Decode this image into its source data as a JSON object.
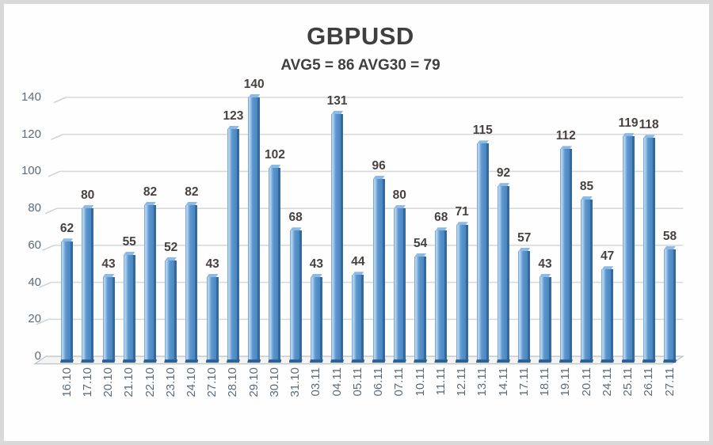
{
  "chart_data": {
    "type": "bar",
    "title": "GBPUSD",
    "subtitle": "AVG5 = 86 AVG30 = 79",
    "categories": [
      "16.10",
      "17.10",
      "20.10",
      "21.10",
      "22.10",
      "23.10",
      "24.10",
      "27.10",
      "28.10",
      "29.10",
      "30.10",
      "31.10",
      "03.11",
      "04.11",
      "05.11",
      "06.11",
      "07.11",
      "10.11",
      "11.11",
      "12.11",
      "13.11",
      "14.11",
      "17.11",
      "18.11",
      "19.11",
      "20.11",
      "24.11",
      "25.11",
      "26.11",
      "27.11"
    ],
    "values": [
      62,
      80,
      43,
      55,
      82,
      52,
      82,
      43,
      123,
      140,
      102,
      68,
      43,
      131,
      44,
      96,
      80,
      54,
      68,
      71,
      115,
      92,
      57,
      43,
      112,
      85,
      47,
      119,
      118,
      58
    ],
    "data_labels": true,
    "xlabel": "",
    "ylabel": "",
    "ylim": [
      0,
      140
    ],
    "yticks": [
      0,
      20,
      40,
      60,
      80,
      100,
      120,
      140
    ],
    "grid": true,
    "legend": false,
    "style_3d": true,
    "colors": {
      "bar_face": "#8fb9e2",
      "bar_face_light": "#c2dcf3",
      "bar_face_dark": "#4a86bf",
      "bar_mid": "#5b96ce",
      "bar_side": "#35689c",
      "bar_top": "#8cbae4",
      "bar_base": "#2e6194",
      "gridline": "#d8d9db",
      "wall_tick": "#cdd2d6",
      "floor_fill": "#f4f4f3",
      "floor_edge": "#bcc1c6",
      "axis_text": "#5d6b78",
      "value_label": "#474240",
      "title_text": "#3f3f3f",
      "frame_border": "#d9d9d9"
    }
  }
}
